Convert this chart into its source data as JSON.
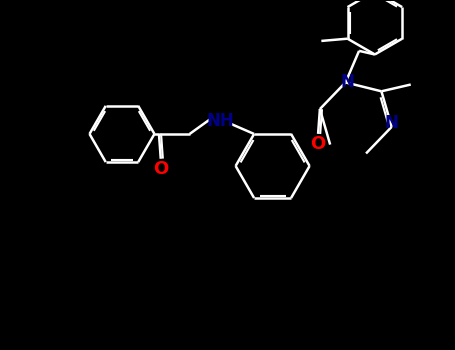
{
  "background_color": "#000000",
  "bond_color": "#ffffff",
  "N_color": "#00008b",
  "O_color": "#ff0000",
  "label_fontsize": 12,
  "bond_width": 1.8,
  "dbo": 0.055,
  "figsize": [
    4.55,
    3.5
  ],
  "dpi": 100,
  "xlim": [
    0,
    10
  ],
  "ylim": [
    0,
    7.7
  ]
}
